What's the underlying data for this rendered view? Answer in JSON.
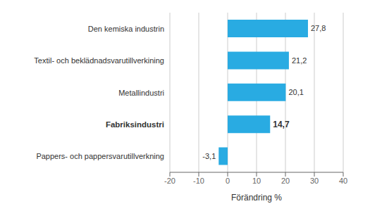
{
  "chart_data": {
    "type": "bar",
    "orientation": "horizontal",
    "categories": [
      "Pappers- och pappersvarutillverkning",
      "Fabriksindustri",
      "Metallindustri",
      "Textil- och beklädnadsvarutillverkining",
      "Den kemiska industrin"
    ],
    "values": [
      -3.1,
      14.7,
      20.1,
      21.2,
      27.8
    ],
    "value_labels": [
      "-3,1",
      "14,7",
      "20,1",
      "21,2",
      "27,8"
    ],
    "data_labels": true,
    "color": "#29abe2",
    "xlabel": "Förändring %",
    "xlim": [
      -20,
      40
    ],
    "xticks": [
      -20,
      -10,
      0,
      10,
      20,
      30,
      40
    ],
    "grid": true
  }
}
